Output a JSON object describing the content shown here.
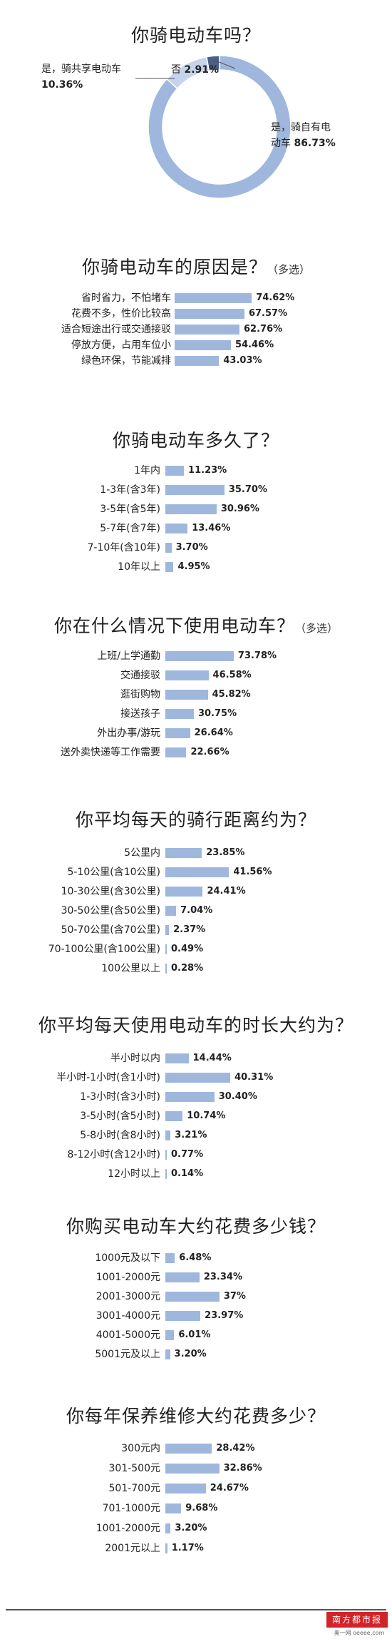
{
  "colors": {
    "bar": "#9fb7dd",
    "donut_main": "#9fb7dd",
    "donut_shared": "#c5d4ec",
    "donut_no": "#4a5f86"
  },
  "chart_data": [
    {
      "type": "pie",
      "donut": true,
      "title": "你骑电动车吗？",
      "categories": [
        "是，骑自有电动车",
        "是，骑共享电动车",
        "否"
      ],
      "values": [
        86.73,
        10.36,
        2.91
      ],
      "labels": [
        {
          "text": "是，骑自有电\n动车",
          "value": "86.73%"
        },
        {
          "text": "是，骑共享电动车",
          "value": "10.36%"
        },
        {
          "text": "否",
          "value": "2.91%"
        }
      ]
    },
    {
      "type": "bar",
      "orientation": "horizontal",
      "title": "你骑电动车的原因是？",
      "note": "（多选）",
      "categories": [
        "省时省力，不怕堵车",
        "花费不多，性价比较高",
        "适合短途出行或交通接驳",
        "停放方便，占用车位小",
        "绿色环保，节能减排"
      ],
      "values": [
        74.62,
        67.57,
        62.76,
        54.46,
        43.03
      ],
      "value_labels": [
        "74.62%",
        "67.57%",
        "62.76%",
        "54.46%",
        "43.03%"
      ]
    },
    {
      "type": "bar",
      "orientation": "horizontal",
      "title": "你骑电动车多久了？",
      "note": "",
      "categories": [
        "1年内",
        "1-3年(含3年)",
        "3-5年(含5年)",
        "5-7年(含7年)",
        "7-10年(含10年)",
        "10年以上"
      ],
      "values": [
        11.23,
        35.7,
        30.96,
        13.46,
        3.7,
        4.95
      ],
      "value_labels": [
        "11.23%",
        "35.70%",
        "30.96%",
        "13.46%",
        "3.70%",
        "4.95%"
      ]
    },
    {
      "type": "bar",
      "orientation": "horizontal",
      "title": "你在什么情况下使用电动车？",
      "note": "（多选）",
      "categories": [
        "上班/上学通勤",
        "交通接驳",
        "逛街购物",
        "接送孩子",
        "外出办事/游玩",
        "送外卖快递等工作需要"
      ],
      "values": [
        73.78,
        46.58,
        45.82,
        30.75,
        26.64,
        22.66
      ],
      "value_labels": [
        "73.78%",
        "46.58%",
        "45.82%",
        "30.75%",
        "26.64%",
        "22.66%"
      ]
    },
    {
      "type": "bar",
      "orientation": "horizontal",
      "title": "你平均每天的骑行距离约为？",
      "note": "",
      "categories": [
        "5公里内",
        "5-10公里(含10公里)",
        "10-30公里(含30公里)",
        "30-50公里(含50公里)",
        "50-70公里(含70公里)",
        "70-100公里(含100公里)",
        "100公里以上"
      ],
      "values": [
        23.85,
        41.56,
        24.41,
        7.04,
        2.37,
        0.49,
        0.28
      ],
      "value_labels": [
        "23.85%",
        "41.56%",
        "24.41%",
        "7.04%",
        "2.37%",
        "0.49%",
        "0.28%"
      ]
    },
    {
      "type": "bar",
      "orientation": "horizontal",
      "title": "你平均每天使用电动车的时长大约为？",
      "note": "",
      "categories": [
        "半小时以内",
        "半小时-1小时(含1小时)",
        "1-3小时(含3小时)",
        "3-5小时(含5小时)",
        "5-8小时(含8小时)",
        "8-12小时(含12小时)",
        "12小时以上"
      ],
      "values": [
        14.44,
        40.31,
        30.4,
        10.74,
        3.21,
        0.77,
        0.14
      ],
      "value_labels": [
        "14.44%",
        "40.31%",
        "30.40%",
        "10.74%",
        "3.21%",
        "0.77%",
        "0.14%"
      ]
    },
    {
      "type": "bar",
      "orientation": "horizontal",
      "title": "你购买电动车大约花费多少钱？",
      "note": "",
      "categories": [
        "1000元及以下",
        "1001-2000元",
        "2001-3000元",
        "3001-4000元",
        "4001-5000元",
        "5001元及以上"
      ],
      "values": [
        6.48,
        23.34,
        37,
        23.97,
        6.01,
        3.2
      ],
      "value_labels": [
        "6.48%",
        "23.34%",
        "37%",
        "23.97%",
        "6.01%",
        "3.20%"
      ]
    },
    {
      "type": "bar",
      "orientation": "horizontal",
      "title": "你每年保养维修大约花费多少？",
      "note": "",
      "categories": [
        "300元内",
        "301-500元",
        "501-700元",
        "701-1000元",
        "1001-2000元",
        "2001元以上"
      ],
      "values": [
        28.42,
        32.86,
        24.67,
        9.68,
        3.2,
        1.17
      ],
      "value_labels": [
        "28.42%",
        "32.86%",
        "24.67%",
        "9.68%",
        "3.20%",
        "1.17%"
      ]
    }
  ],
  "footer": {
    "logo_text": "南方都市报",
    "logo_sub": "奥一网 oeeee.com"
  }
}
